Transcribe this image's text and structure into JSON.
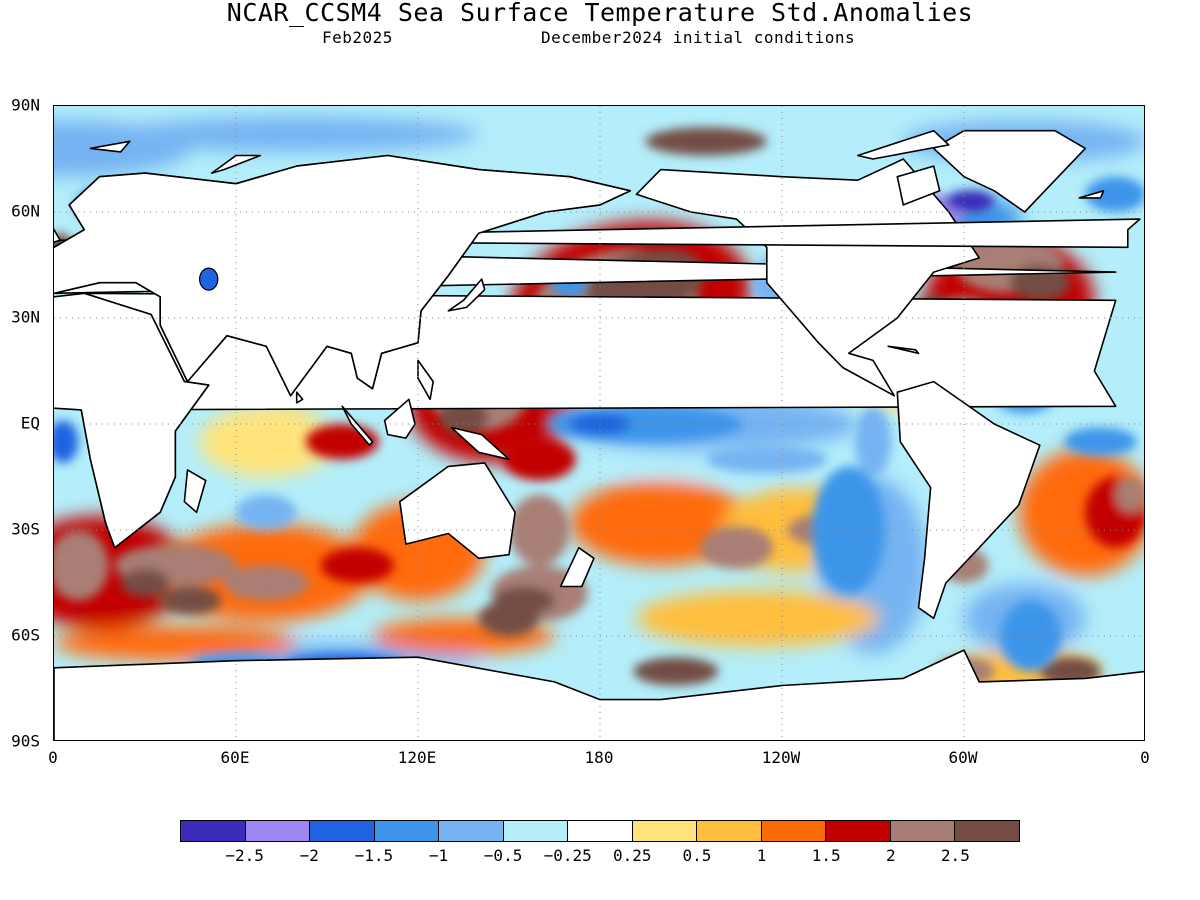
{
  "title": "NCAR_CCSM4 Sea Surface Temperature Std.Anomalies",
  "subtitle_left": "Feb2025",
  "subtitle_right": "December2024 initial conditions",
  "y_tick_labels": [
    "90N",
    "60N",
    "30N",
    "EQ",
    "30S",
    "60S",
    "90S"
  ],
  "x_tick_labels": [
    "0",
    "60E",
    "120E",
    "180",
    "120W",
    "60W",
    "0"
  ],
  "colorbar": {
    "colors": [
      "#3a2bb8",
      "#9b86f2",
      "#1f63e0",
      "#3d95ea",
      "#76b3f2",
      "#b4eefa",
      "#ffffff",
      "#ffe37a",
      "#ffbe3c",
      "#ff6a08",
      "#c30000",
      "#a87e74",
      "#734d44"
    ],
    "labels": [
      "−2.5",
      "−2",
      "−1.5",
      "−1",
      "−0.5",
      "−0.25",
      "0.25",
      "0.5",
      "1",
      "1.5",
      "2",
      "2.5"
    ]
  },
  "map_data": {
    "type": "filled-contour map",
    "lon_range": [
      0,
      360
    ],
    "lat_range": [
      -90,
      90
    ],
    "land_color": "#ffffff",
    "grid": "dotted at 30° lat / 60° lon",
    "anomaly_features": [
      {
        "region": "North Pacific",
        "lon": [
          150,
          230
        ],
        "lat": [
          15,
          55
        ],
        "category": "2.5"
      },
      {
        "region": "Western Tropical Pacific",
        "lon": [
          120,
          170
        ],
        "lat": [
          -10,
          20
        ],
        "category": "2"
      },
      {
        "region": "Equatorial Central Pacific",
        "lon": [
          160,
          270
        ],
        "lat": [
          -8,
          8
        ],
        "category": "-1"
      },
      {
        "region": "Southeast Pacific",
        "lon": [
          230,
          285
        ],
        "lat": [
          -50,
          -10
        ],
        "category": "-0.5"
      },
      {
        "region": "South Pacific",
        "lon": [
          195,
          255
        ],
        "lat": [
          -35,
          -20
        ],
        "category": "1.5"
      },
      {
        "region": "Tasman Sea",
        "lon": [
          145,
          180
        ],
        "lat": [
          -55,
          -35
        ],
        "category": "2.5"
      },
      {
        "region": "South Indian Ocean",
        "lon": [
          20,
          100
        ],
        "lat": [
          -55,
          -25
        ],
        "category": "2"
      },
      {
        "region": "Tropical Indian Ocean",
        "lon": [
          50,
          100
        ],
        "lat": [
          -15,
          10
        ],
        "category": "1"
      },
      {
        "region": "North Atlantic",
        "lon": [
          300,
          350
        ],
        "lat": [
          20,
          55
        ],
        "category": "2"
      },
      {
        "region": "Labrador Sea",
        "lon": [
          295,
          320
        ],
        "lat": [
          55,
          68
        ],
        "category": "-2"
      },
      {
        "region": "Eastern Tropical Atlantic",
        "lon": [
          335,
          360
        ],
        "lat": [
          -30,
          -5
        ],
        "category": "1.5"
      },
      {
        "region": "Southern Ocean Pacific sector",
        "lon": [
          190,
          230
        ],
        "lat": [
          -72,
          -65
        ],
        "category": "2.5"
      },
      {
        "region": "Arctic Chukchi",
        "lon": [
          190,
          240
        ],
        "lat": [
          70,
          85
        ],
        "category": "2.5"
      }
    ]
  }
}
